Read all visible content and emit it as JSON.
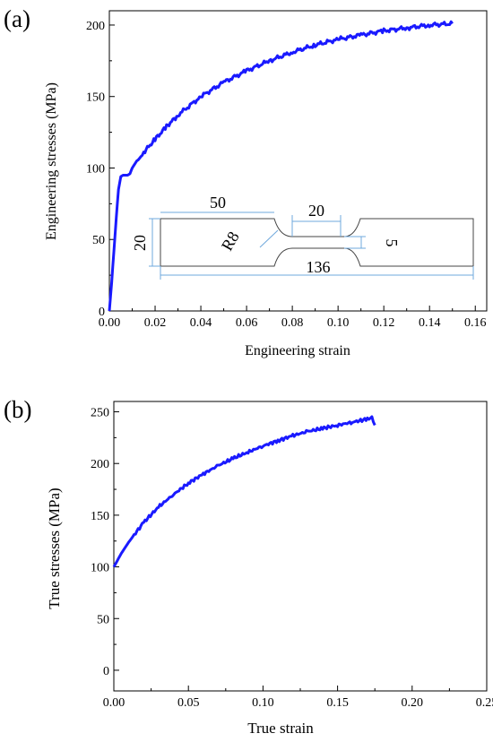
{
  "charts": [
    {
      "panel_label": "(a)",
      "chart_data": {
        "type": "line",
        "xlabel": "Engineering strain",
        "ylabel": "Engineering stresses (MPa)",
        "xlim": [
          0,
          0.165
        ],
        "ylim": [
          0,
          210
        ],
        "xticks": [
          "0.00",
          "0.02",
          "0.04",
          "0.06",
          "0.08",
          "0.10",
          "0.12",
          "0.14",
          "0.16"
        ],
        "yticks": [
          "0",
          "50",
          "100",
          "150",
          "200"
        ],
        "grid": false,
        "series": [
          {
            "color": "#1a1aff",
            "x": [
              0,
              0.001,
              0.002,
              0.003,
              0.004,
              0.005,
              0.006,
              0.008,
              0.009,
              0.01,
              0.012,
              0.015,
              0.02,
              0.025,
              0.03,
              0.04,
              0.05,
              0.06,
              0.07,
              0.08,
              0.09,
              0.1,
              0.11,
              0.12,
              0.13,
              0.14,
              0.15
            ],
            "y": [
              0,
              20,
              42,
              65,
              85,
              94,
              95,
              95,
              96,
              100,
              105,
              111,
              120,
              129,
              137,
              150,
              160,
              168,
              175,
              181,
              186,
              190,
              193,
              196,
              198,
              200,
              201
            ]
          }
        ]
      },
      "inset": {
        "dimensions": [
          "50",
          "20",
          "20",
          "R8",
          "5",
          "136"
        ]
      }
    },
    {
      "panel_label": "(b)",
      "chart_data": {
        "type": "line",
        "xlabel": "True strain",
        "ylabel": "True stresses (MPa)",
        "xlim": [
          0,
          0.25
        ],
        "ylim": [
          -20,
          260
        ],
        "xticks": [
          "0.00",
          "0.05",
          "0.10",
          "0.15",
          "0.20",
          "0.25"
        ],
        "yticks": [
          "0",
          "50",
          "100",
          "150",
          "200",
          "250"
        ],
        "grid": false,
        "series": [
          {
            "color": "#1a1aff",
            "x": [
              0,
              0.005,
              0.01,
              0.02,
              0.03,
              0.04,
              0.05,
              0.06,
              0.07,
              0.08,
              0.09,
              0.1,
              0.11,
              0.12,
              0.13,
              0.14,
              0.15,
              0.16,
              0.17,
              0.173,
              0.175
            ],
            "y": [
              100,
              113,
              124,
              143,
              158,
              170,
              181,
              190,
              198,
              205,
              211,
              217,
              222,
              227,
              231,
              234,
              237,
              240,
              243,
              244,
              237
            ]
          }
        ]
      }
    }
  ]
}
